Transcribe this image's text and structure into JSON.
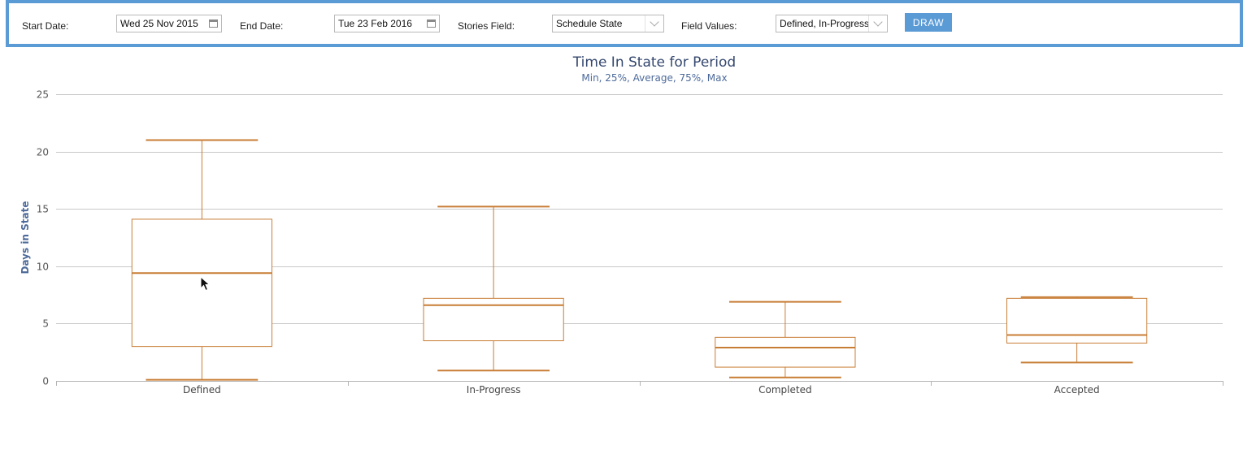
{
  "toolbar": {
    "start_date_label": "Start Date:",
    "start_date_value": "Wed 25 Nov 2015",
    "end_date_label": "End Date:",
    "end_date_value": "Tue 23 Feb 2016",
    "stories_field_label": "Stories Field:",
    "stories_field_value": "Schedule State",
    "field_values_label": "Field Values:",
    "field_values_value": "Defined, In-Progress",
    "draw_label": "DRAW",
    "accent_color": "#5b9bd5"
  },
  "chart_data": {
    "type": "boxplot",
    "title": "Time In State for Period",
    "subtitle": "Min, 25%, Average, 75%, Max",
    "ylabel": "Days in State",
    "xlabel": "",
    "ylim": [
      0,
      25
    ],
    "yticks": [
      0,
      5,
      10,
      15,
      20,
      25
    ],
    "grid": true,
    "color": "#c87d35",
    "categories": [
      "Defined",
      "In-Progress",
      "Completed",
      "Accepted"
    ],
    "series": [
      {
        "boxes": [
          {
            "min": 0.1,
            "q1": 3.0,
            "average": 9.4,
            "q3": 14.1,
            "max": 21.0
          },
          {
            "min": 0.9,
            "q1": 3.5,
            "average": 6.6,
            "q3": 7.2,
            "max": 15.2
          },
          {
            "min": 0.3,
            "q1": 1.2,
            "average": 2.9,
            "q3": 3.8,
            "max": 6.9
          },
          {
            "min": 1.6,
            "q1": 3.3,
            "average": 4.0,
            "q3": 7.2,
            "max": 7.3
          }
        ]
      }
    ]
  }
}
